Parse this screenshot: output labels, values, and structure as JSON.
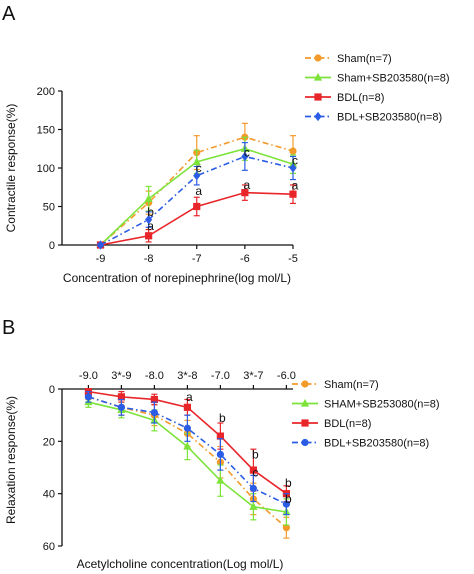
{
  "chart_data": [
    {
      "panel_label": "A",
      "type": "line",
      "title": "",
      "xlabel": "Concentration of norepinephrine(log mol/L)",
      "ylabel": "Contractile response(%)",
      "x": [
        -9,
        -8,
        -7,
        -6,
        -5
      ],
      "x_tick_labels": [
        "-9",
        "-8",
        "-7",
        "-6",
        "-5"
      ],
      "xlim": [
        -9.3,
        -5
      ],
      "ylim": [
        0,
        200
      ],
      "y_ticks": [
        0,
        50,
        100,
        150,
        200
      ],
      "grid": false,
      "legend_position": "top-right",
      "series": [
        {
          "name": "Sham(n=7)",
          "color": "#F39A2B",
          "marker": "circle",
          "dash": "dashdot",
          "values": [
            0,
            55,
            120,
            140,
            122
          ],
          "errors": [
            2,
            15,
            22,
            18,
            20
          ]
        },
        {
          "name": "Sham+SB203580(n=8)",
          "color": "#7CE33A",
          "marker": "triangle",
          "dash": "solid",
          "values": [
            0,
            60,
            108,
            125,
            105
          ],
          "errors": [
            2,
            16,
            15,
            15,
            12
          ]
        },
        {
          "name": "BDL(n=8)",
          "color": "#E8262A",
          "marker": "square",
          "dash": "solid",
          "values": [
            0,
            12,
            50,
            68,
            66
          ],
          "errors": [
            1,
            8,
            12,
            10,
            12
          ]
        },
        {
          "name": "BDL+SB203580(n=8)",
          "color": "#2B5CE6",
          "marker": "diamond",
          "dash": "dashdot",
          "values": [
            0,
            33,
            90,
            115,
            100
          ],
          "errors": [
            2,
            10,
            12,
            18,
            15
          ]
        }
      ],
      "annotations": [
        {
          "x": -8,
          "y": 43,
          "text": "b"
        },
        {
          "x": -8,
          "y": 25,
          "text": "a"
        },
        {
          "x": -7,
          "y": 100,
          "text": "c"
        },
        {
          "x": -7,
          "y": 70,
          "text": "a"
        },
        {
          "x": -6,
          "y": 120,
          "text": "c"
        },
        {
          "x": -6,
          "y": 78,
          "text": "a"
        },
        {
          "x": -5,
          "y": 110,
          "text": "c"
        },
        {
          "x": -5,
          "y": 77,
          "text": "a"
        }
      ]
    },
    {
      "panel_label": "B",
      "type": "line",
      "title": "",
      "xlabel": "Acetylcholine concentration(Log mol/L)",
      "ylabel": "Relaxation response(%)",
      "x": [
        -9.0,
        -8.5,
        -8.0,
        -7.5,
        -7.0,
        -6.5,
        -6.0
      ],
      "x_tick_labels": [
        "-9.0",
        "3*-9",
        "-8.0",
        "3*-8",
        "-7.0",
        "3*-7",
        "-6.0"
      ],
      "ylim": [
        0,
        60
      ],
      "y_ticks": [
        0,
        20,
        40,
        60
      ],
      "y_inverted": true,
      "x_axis_position": "top",
      "grid": false,
      "legend_position": "right",
      "series": [
        {
          "name": "Sham(n=7)",
          "color": "#F39A2B",
          "marker": "circle",
          "dash": "dashdot",
          "values": [
            3,
            7,
            10,
            17,
            28,
            42,
            53
          ],
          "errors": [
            1,
            3,
            4,
            5,
            6,
            6,
            4
          ]
        },
        {
          "name": "SHAM+SB253080(n=8)",
          "color": "#7CE33A",
          "marker": "triangle",
          "dash": "solid",
          "values": [
            5,
            8,
            12,
            22,
            35,
            45,
            47
          ],
          "errors": [
            2,
            3,
            4,
            5,
            6,
            5,
            5
          ]
        },
        {
          "name": "BDL(n=8)",
          "color": "#E8262A",
          "marker": "square",
          "dash": "solid",
          "values": [
            1,
            3,
            4,
            7,
            18,
            31,
            40
          ],
          "errors": [
            1,
            2,
            2,
            3,
            5,
            8,
            3
          ]
        },
        {
          "name": "BDL+SB203580(n=8)",
          "color": "#2B5CE6",
          "marker": "circle",
          "dash": "dashdot",
          "values": [
            3,
            7,
            9,
            15,
            25,
            38,
            44
          ],
          "errors": [
            2,
            3,
            4,
            5,
            6,
            5,
            4
          ]
        }
      ],
      "annotations": [
        {
          "x": -7.5,
          "y": 3,
          "text": "a"
        },
        {
          "x": -7.0,
          "y": 11,
          "text": "b"
        },
        {
          "x": -6.5,
          "y": 25,
          "text": "b"
        },
        {
          "x": -6.5,
          "y": 32,
          "text": "c"
        },
        {
          "x": -6.0,
          "y": 36,
          "text": "b"
        },
        {
          "x": -6.0,
          "y": 42,
          "text": "b"
        }
      ]
    }
  ]
}
